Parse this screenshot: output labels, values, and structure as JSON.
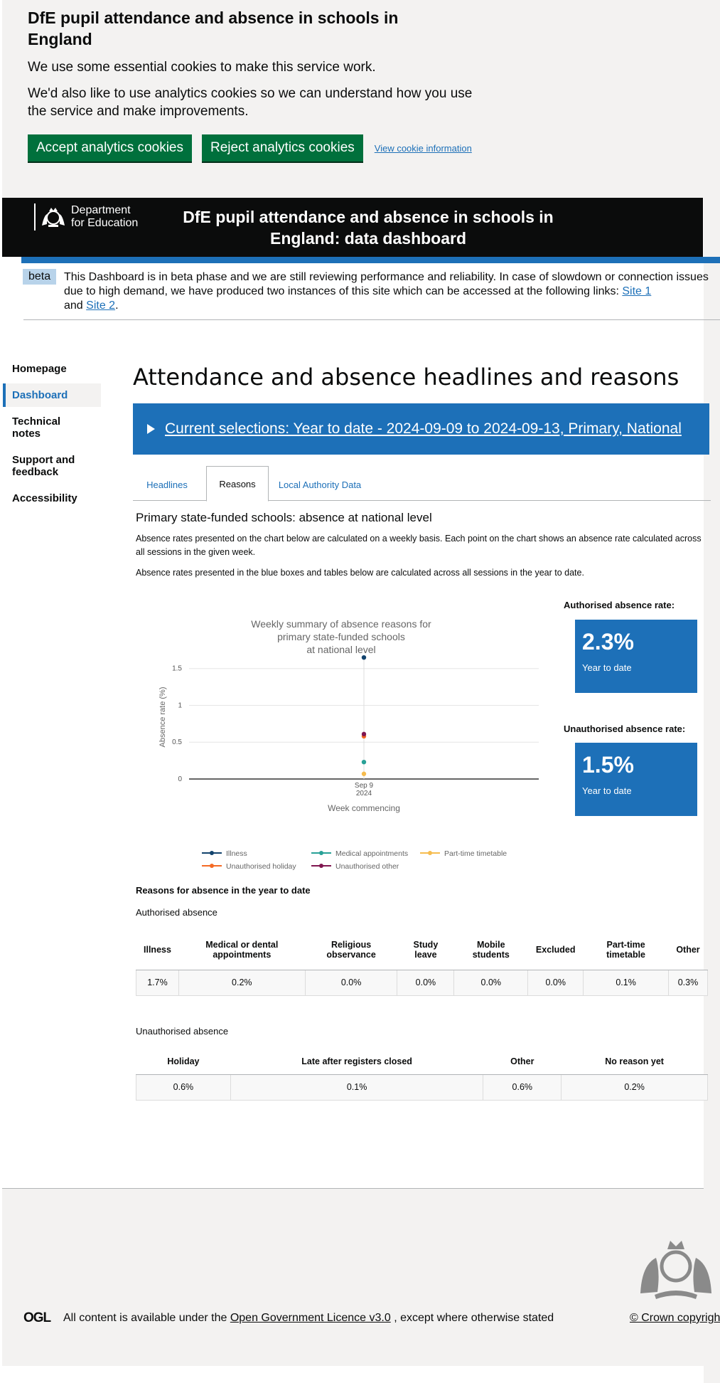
{
  "cookie_banner": {
    "title": "DfE pupil attendance and absence in schools in England",
    "text1": "We use some essential cookies to make this service work.",
    "text2": "We'd also like to use analytics cookies so we can understand how you use the service and make improvements.",
    "accept_label": "Accept analytics cookies",
    "reject_label": "Reject analytics cookies",
    "info_link": "View cookie information"
  },
  "header": {
    "dept_line1": "Department",
    "dept_line2": "for Education",
    "title": "DfE pupil attendance and absence in schools in England: data dashboard"
  },
  "beta": {
    "tag": "beta",
    "text": "This Dashboard is in beta phase and we are still reviewing performance and reliability. In case of slowdown or connection issues due to high demand, we have produced two instances of this site which can be accessed at the following links:",
    "link1": "Site 1",
    "and": "and",
    "link2": "Site 2",
    "period": "."
  },
  "nav": {
    "items": [
      "Homepage",
      "Dashboard",
      "Technical notes",
      "Support and feedback",
      "Accessibility"
    ]
  },
  "main": {
    "title": "Attendance and absence headlines and reasons",
    "selections": "Current selections: Year to date - 2024-09-09 to 2024-09-13, Primary, National",
    "tabs": [
      "Headlines",
      "Reasons",
      "Local Authority Data"
    ],
    "section_title": "Primary state-funded schools: absence at national level",
    "desc1": "Absence rates presented on the chart below are calculated on a weekly basis. Each point on the chart shows an absence rate calculated across all sessions in the given week.",
    "desc2": "Absence rates presented in the blue boxes and tables below are calculated across all sessions in the year to date."
  },
  "chart_data": {
    "type": "scatter",
    "title_lines": [
      "Weekly summary of absence reasons for",
      "primary state-funded schools",
      "at national level"
    ],
    "xlabel": "Week commencing",
    "ylabel": "Absence rate (%)",
    "x_tick_line1": "Sep 9",
    "x_tick_line2": "2024",
    "ylim": [
      0,
      1.7
    ],
    "y_ticks": [
      "0",
      "0.5",
      "1",
      "1.5"
    ],
    "y_tick_values": [
      0,
      0.5,
      1,
      1.5
    ],
    "series": [
      {
        "name": "Illness",
        "value": 1.65,
        "color": "#12436d"
      },
      {
        "name": "Medical appointments",
        "value": 0.23,
        "color": "#28a197"
      },
      {
        "name": "Part-time timetable",
        "value": 0.07,
        "color": "#f6bc4e"
      },
      {
        "name": "Unauthorised holiday",
        "value": 0.58,
        "color": "#f46a25"
      },
      {
        "name": "Unauthorised other",
        "value": 0.61,
        "color": "#801650"
      }
    ]
  },
  "kpis": {
    "authorised_label": "Authorised absence rate:",
    "authorised_value": "2.3%",
    "authorised_sub": "Year to date",
    "unauthorised_label": "Unauthorised absence rate:",
    "unauthorised_value": "1.5%",
    "unauthorised_sub": "Year to date"
  },
  "tables": {
    "reasons_title": "Reasons for absence in the year to date",
    "authorised_title": "Authorised absence",
    "authorised_headers": [
      "Illness",
      "Medical or dental appointments",
      "Religious observance",
      "Study leave",
      "Mobile students",
      "Excluded",
      "Part-time timetable",
      "Other"
    ],
    "authorised_values": [
      "1.7%",
      "0.2%",
      "0.0%",
      "0.0%",
      "0.0%",
      "0.0%",
      "0.1%",
      "0.3%"
    ],
    "unauthorised_title": "Unauthorised absence",
    "unauthorised_headers": [
      "Holiday",
      "Late after registers closed",
      "Other",
      "No reason yet"
    ],
    "unauthorised_values": [
      "0.6%",
      "0.1%",
      "0.6%",
      "0.2%"
    ]
  },
  "footer": {
    "ogl": "OGL",
    "lic_pre": "All content is available under the",
    "lic_link": "Open Government Licence v3.0",
    "lic_post": ", except where otherwise stated",
    "copyright": "© Crown copyright"
  }
}
